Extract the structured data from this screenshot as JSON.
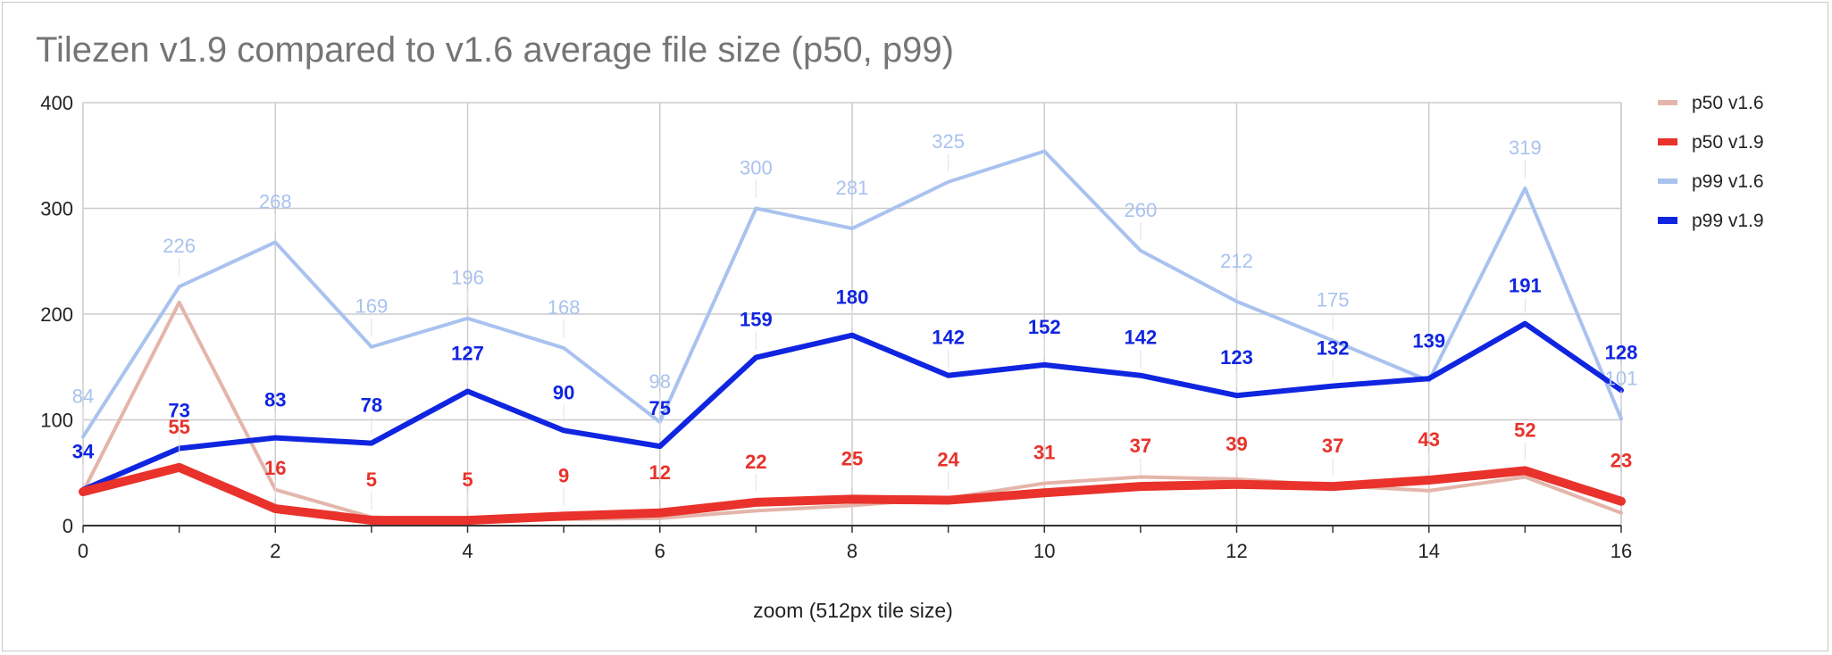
{
  "chart_data": {
    "type": "line",
    "title": "Tilezen v1.9 compared to v1.6 average file size (p50, p99)",
    "xlabel": "zoom (512px tile size)",
    "ylabel": "",
    "x": [
      0,
      1,
      2,
      3,
      4,
      5,
      6,
      7,
      8,
      9,
      10,
      11,
      12,
      13,
      14,
      15,
      16
    ],
    "x_tick_labels": [
      "0",
      "2",
      "4",
      "6",
      "8",
      "10",
      "12",
      "14",
      "16"
    ],
    "y_tick_labels": [
      "0",
      "100",
      "200",
      "300",
      "400"
    ],
    "xlim": [
      0,
      16
    ],
    "ylim": [
      0,
      400
    ],
    "grid": true,
    "legend_position": "right",
    "series": [
      {
        "name": "p50 v1.6",
        "color": "#e4b5aa",
        "values": [
          32,
          211,
          34,
          8,
          5,
          6,
          7,
          14,
          19,
          26,
          40,
          46,
          44,
          38,
          33,
          46,
          12
        ]
      },
      {
        "name": "p50 v1.9",
        "color": "#e8322b",
        "values": [
          32,
          55,
          16,
          5,
          5,
          9,
          12,
          22,
          25,
          24,
          31,
          37,
          39,
          37,
          43,
          52,
          23
        ],
        "data_labels": [
          "",
          "55",
          "16",
          "5",
          "5",
          "9",
          "12",
          "22",
          "25",
          "24",
          "31",
          "37",
          "39",
          "37",
          "43",
          "52",
          "23"
        ]
      },
      {
        "name": "p99 v1.6",
        "color": "#a9c2ef",
        "values": [
          84,
          226,
          268,
          169,
          196,
          168,
          98,
          300,
          281,
          325,
          354,
          260,
          212,
          175,
          137,
          319,
          101
        ],
        "data_labels": [
          "84",
          "226",
          "268",
          "169",
          "196",
          "168",
          "98",
          "300",
          "281",
          "325",
          "",
          "260",
          "212",
          "175",
          "",
          "319",
          "101"
        ]
      },
      {
        "name": "p99 v1.9",
        "color": "#1025e0",
        "values": [
          34,
          73,
          83,
          78,
          127,
          90,
          75,
          159,
          180,
          142,
          152,
          142,
          123,
          132,
          139,
          191,
          128
        ],
        "data_labels": [
          "34",
          "73",
          "83",
          "78",
          "127",
          "90",
          "75",
          "159",
          "180",
          "142",
          "152",
          "142",
          "123",
          "132",
          "139",
          "191",
          "128"
        ]
      }
    ]
  }
}
